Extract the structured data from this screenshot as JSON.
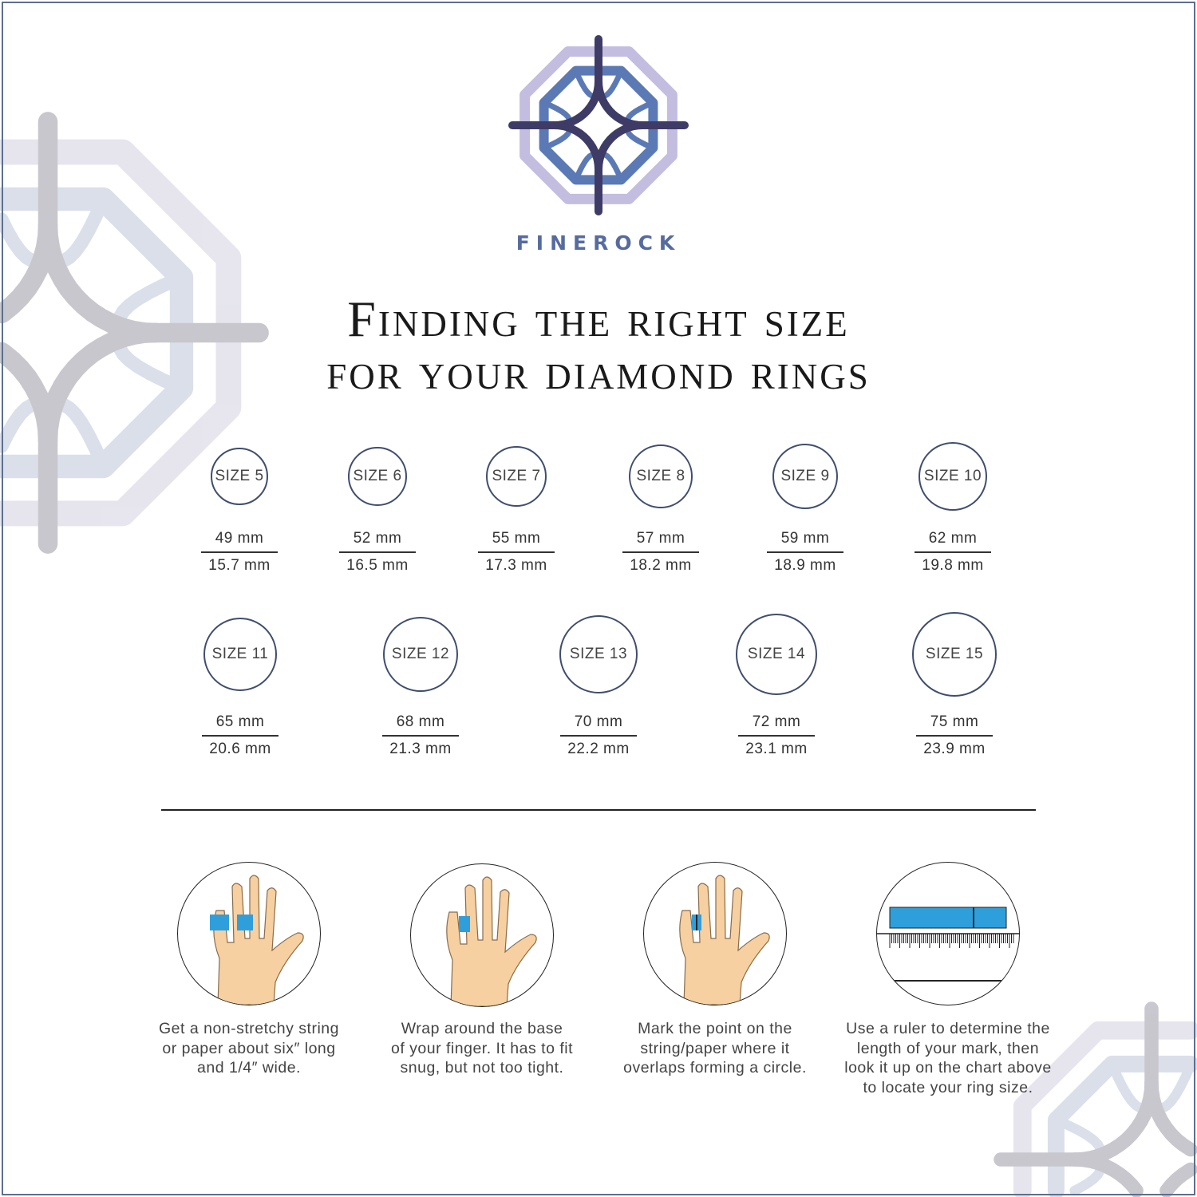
{
  "brand": {
    "name": "FINEROCK",
    "colors": {
      "outer": "#c3bde0",
      "inner": "#5b7ab5",
      "star": "#3e3b66"
    }
  },
  "title": {
    "line1": "Finding the right size",
    "line2": "for your diamond rings"
  },
  "sizes": [
    {
      "label": "SIZE 5",
      "circumference": "49 mm",
      "diameter": "15.7 mm"
    },
    {
      "label": "SIZE 6",
      "circumference": "52 mm",
      "diameter": "16.5 mm"
    },
    {
      "label": "SIZE 7",
      "circumference": "55 mm",
      "diameter": "17.3 mm"
    },
    {
      "label": "SIZE 8",
      "circumference": "57 mm",
      "diameter": "18.2 mm"
    },
    {
      "label": "SIZE 9",
      "circumference": "59 mm",
      "diameter": "18.9 mm"
    },
    {
      "label": "SIZE 10",
      "circumference": "62 mm",
      "diameter": "19.8 mm"
    },
    {
      "label": "SIZE 11",
      "circumference": "65 mm",
      "diameter": "20.6 mm"
    },
    {
      "label": "SIZE 12",
      "circumference": "68 mm",
      "diameter": "21.3 mm"
    },
    {
      "label": "SIZE 13",
      "circumference": "70 mm",
      "diameter": "22.2 mm"
    },
    {
      "label": "SIZE 14",
      "circumference": "72 mm",
      "diameter": "23.1 mm"
    },
    {
      "label": "SIZE 15",
      "circumference": "75 mm",
      "diameter": "23.9 mm"
    }
  ],
  "steps": [
    {
      "icon": "hand-with-paper-strip-icon",
      "caption": [
        "Get a non-stretchy string",
        "or paper about six″ long",
        "and 1/4″ wide."
      ]
    },
    {
      "icon": "hand-wrap-finger-icon",
      "caption": [
        "Wrap around the base",
        "of your finger. It has to fit",
        "snug, but not too tight."
      ]
    },
    {
      "icon": "hand-mark-overlap-icon",
      "caption": [
        "Mark the point on the",
        "string/paper where it",
        "overlaps forming a circle."
      ]
    },
    {
      "icon": "ruler-icon",
      "caption": [
        "Use a ruler to determine the",
        "length of your mark, then",
        "look it up on the chart above",
        "to locate your ring size."
      ]
    }
  ],
  "colors": {
    "tape": "#2f9fdc",
    "skin": "#f6d0a0",
    "border": "#5c6f8f"
  }
}
